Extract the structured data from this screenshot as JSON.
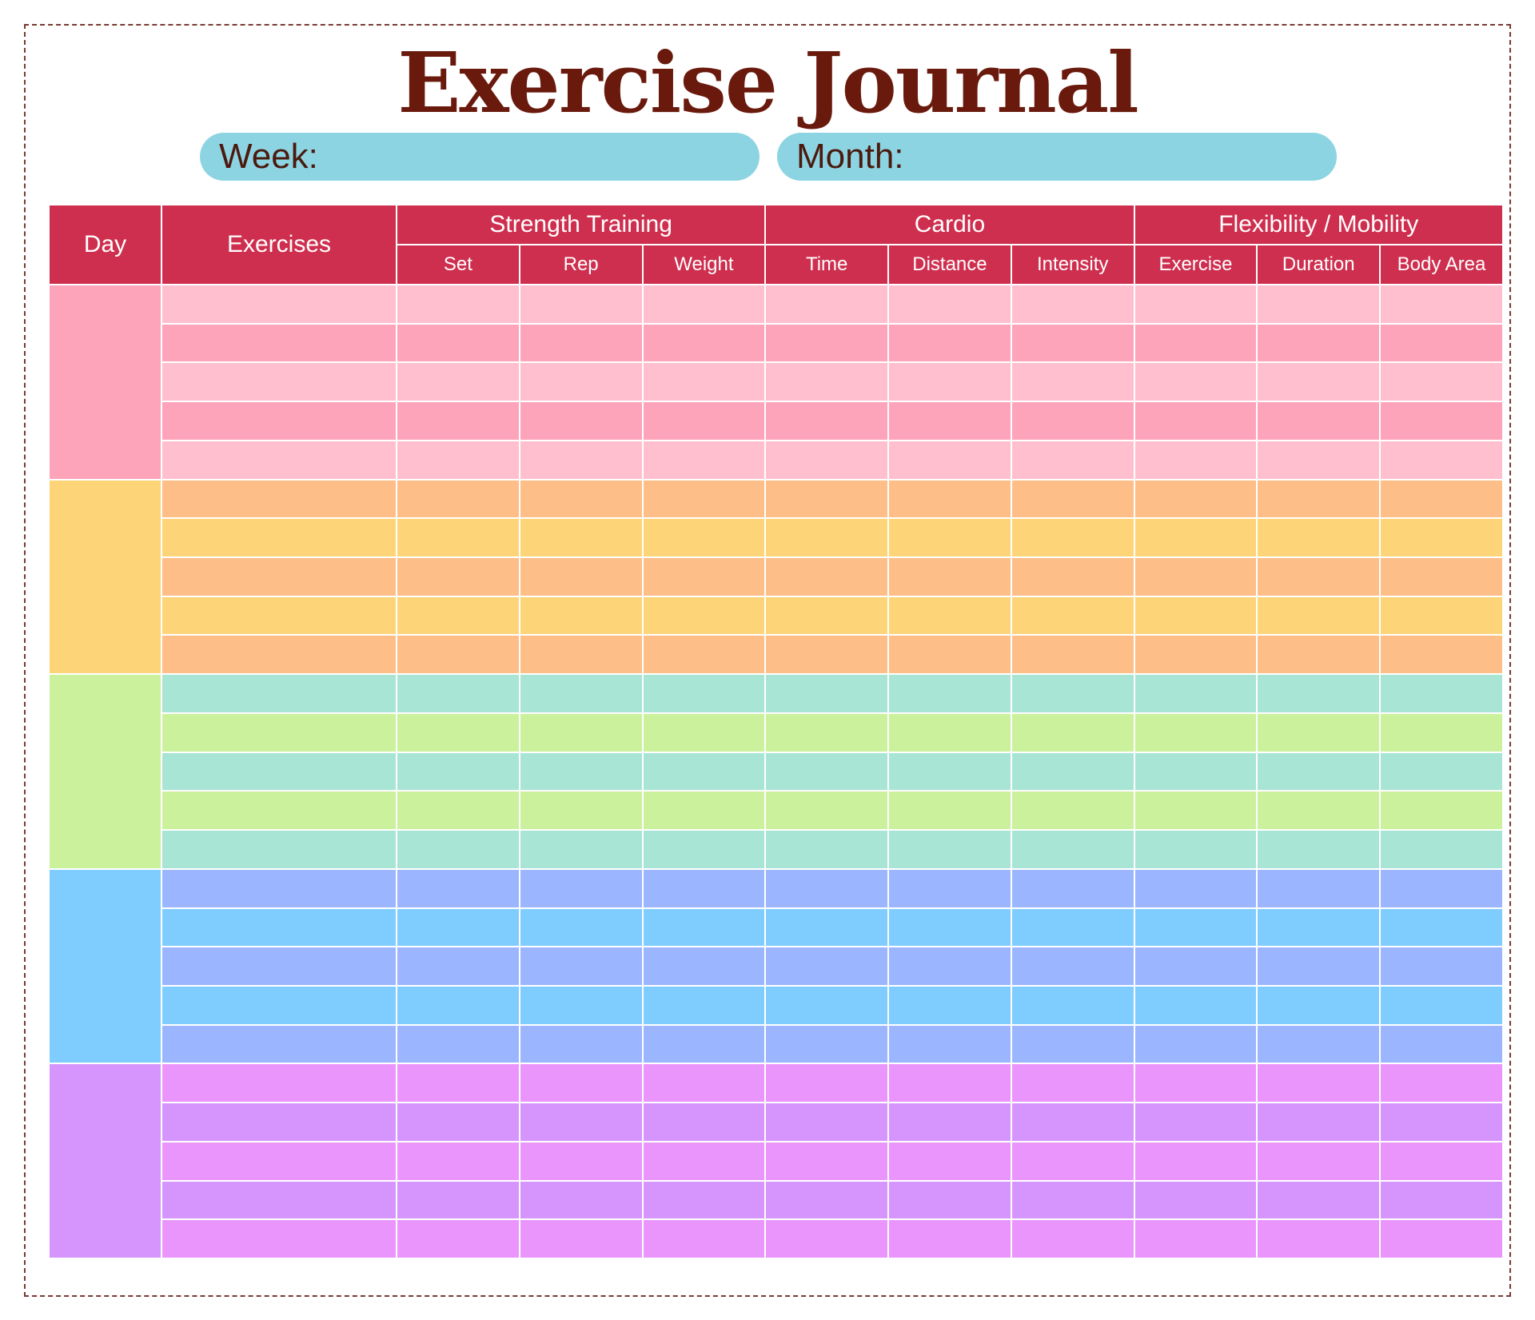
{
  "title": "Exercise Journal",
  "week_label": "Week:",
  "month_label": "Month:",
  "headers": {
    "day": "Day",
    "exercises": "Exercises",
    "groups": [
      {
        "label": "Strength Training",
        "columns": [
          "Set",
          "Rep",
          "Weight"
        ]
      },
      {
        "label": "Cardio",
        "columns": [
          "Time",
          "Distance",
          "Intensity"
        ]
      },
      {
        "label": "Flexibility / Mobility",
        "columns": [
          "Exercise",
          "Duration",
          "Body Area"
        ]
      }
    ]
  },
  "day_blocks": 5,
  "rows_per_day": 5,
  "colors": {
    "header": "#cf2f4f",
    "title": "#6a1a0d",
    "pill": "#8dd4e3",
    "day_palettes": [
      {
        "day": "#fda3ba",
        "light": "#ffbfcf",
        "dark": "#fda3ba"
      },
      {
        "day": "#fed479",
        "light": "#fdbe87",
        "dark": "#fed479"
      },
      {
        "day": "#cbf19c",
        "light": "#a9e5d4",
        "dark": "#cbf19c"
      },
      {
        "day": "#7fcdfe",
        "light": "#9bb6fe",
        "dark": "#7fcdfe"
      },
      {
        "day": "#d595fd",
        "light": "#ea95fc",
        "dark": "#d595fd"
      }
    ]
  }
}
